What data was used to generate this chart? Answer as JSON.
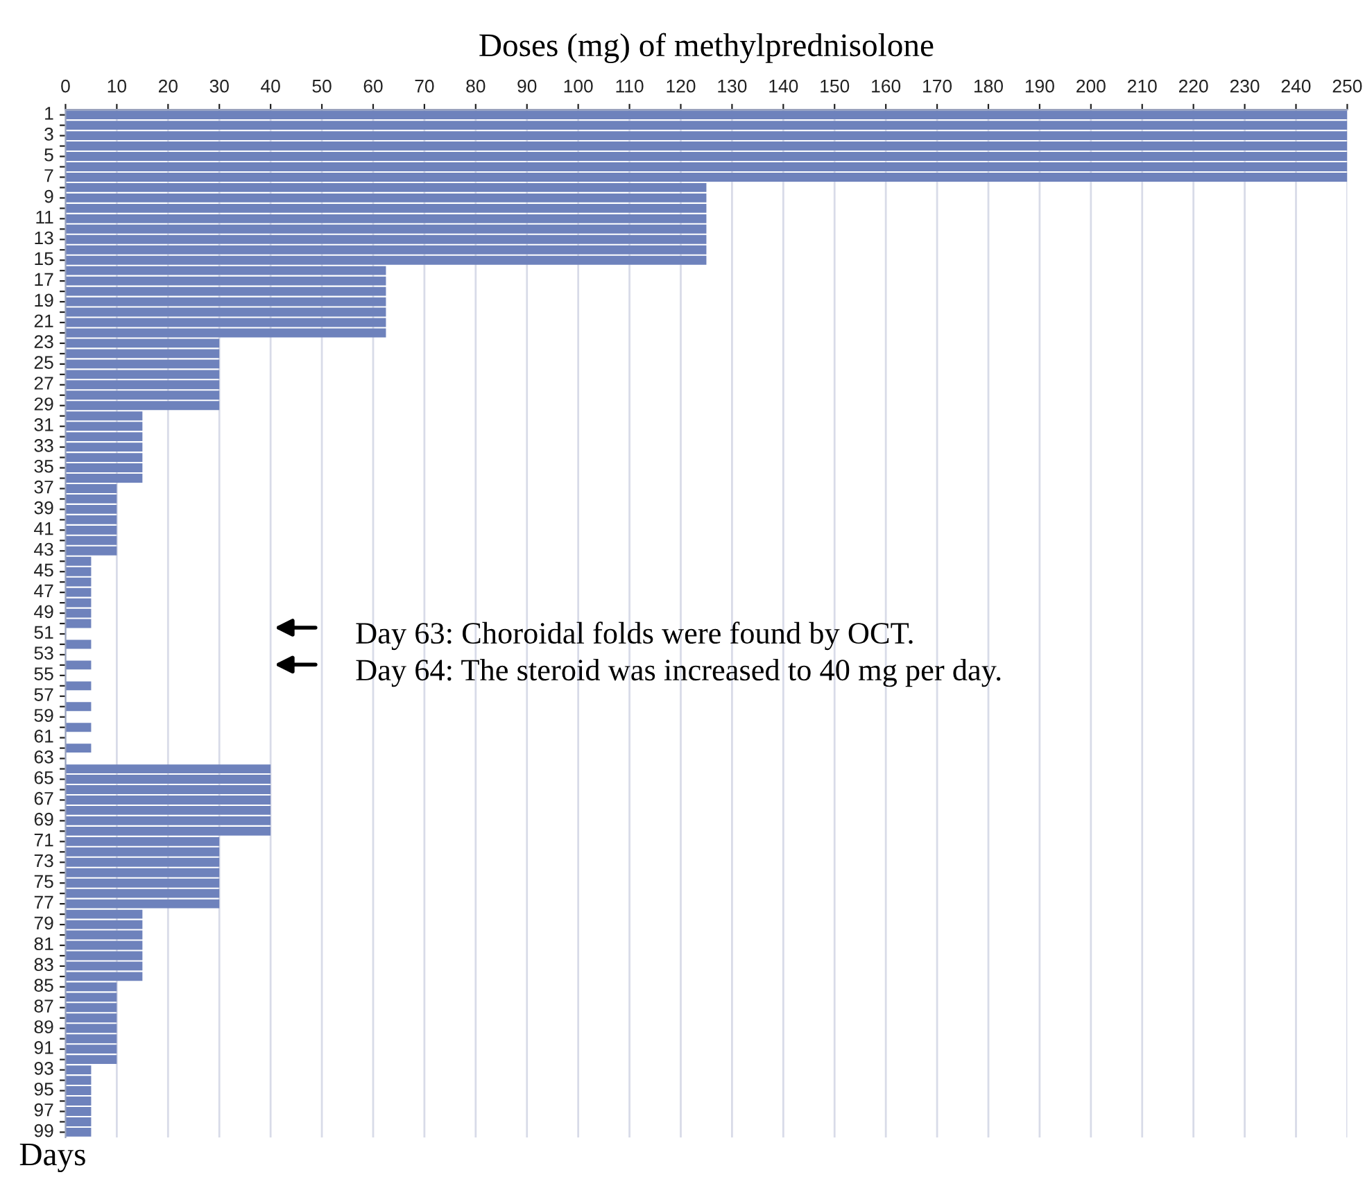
{
  "chart_data": {
    "type": "bar",
    "orientation": "horizontal",
    "xlabel": "Doses (mg) of methylprednisolone",
    "ylabel": "Days",
    "categories": [
      "1",
      null,
      "3",
      null,
      "5",
      null,
      "7",
      null,
      "9",
      null,
      "11",
      null,
      "13",
      null,
      "15",
      null,
      "17",
      null,
      "19",
      null,
      "21",
      null,
      "23",
      null,
      "25",
      null,
      "27",
      null,
      "29",
      null,
      "31",
      null,
      "33",
      null,
      "35",
      null,
      "37",
      null,
      "39",
      null,
      "41",
      null,
      "43",
      null,
      "45",
      null,
      "47",
      null,
      "49",
      null,
      "51",
      null,
      "53",
      null,
      "55",
      null,
      "57",
      null,
      "59",
      null,
      "61",
      null,
      "63",
      null,
      "65",
      null,
      "67",
      null,
      "69",
      null,
      "71",
      null,
      "73",
      null,
      "75",
      null,
      "77",
      null,
      "79",
      null,
      "81",
      null,
      "83",
      null,
      "85",
      null,
      "87",
      null,
      "89",
      null,
      "91",
      null,
      "93",
      null,
      "95",
      null,
      "97",
      null,
      "99"
    ],
    "values": [
      250,
      250,
      250,
      250,
      250,
      250,
      250,
      125,
      125,
      125,
      125,
      125,
      125,
      125,
      125,
      62.5,
      62.5,
      62.5,
      62.5,
      62.5,
      62.5,
      62.5,
      30,
      30,
      30,
      30,
      30,
      30,
      30,
      15,
      15,
      15,
      15,
      15,
      15,
      15,
      10,
      10,
      10,
      10,
      10,
      10,
      10,
      5,
      5,
      5,
      5,
      5,
      5,
      5,
      0,
      5,
      0,
      5,
      0,
      5,
      0,
      5,
      0,
      5,
      0,
      5,
      0,
      40,
      40,
      40,
      40,
      40,
      40,
      40,
      30,
      30,
      30,
      30,
      30,
      30,
      30,
      15,
      15,
      15,
      15,
      15,
      15,
      15,
      10,
      10,
      10,
      10,
      10,
      10,
      10,
      10,
      5,
      5,
      5,
      5,
      5,
      5,
      5
    ],
    "color": "#6e82bc",
    "xlim": [
      0,
      250
    ],
    "xticks": [
      0,
      10,
      20,
      30,
      40,
      50,
      60,
      70,
      80,
      90,
      100,
      110,
      120,
      130,
      140,
      150,
      160,
      170,
      180,
      190,
      200,
      210,
      220,
      230,
      240,
      250
    ],
    "grid": "x",
    "legend": false,
    "annotations": [
      "Day 63: Choroidal folds were found by OCT.",
      "Day 64: The steroid was increased to 40 mg per day."
    ]
  }
}
